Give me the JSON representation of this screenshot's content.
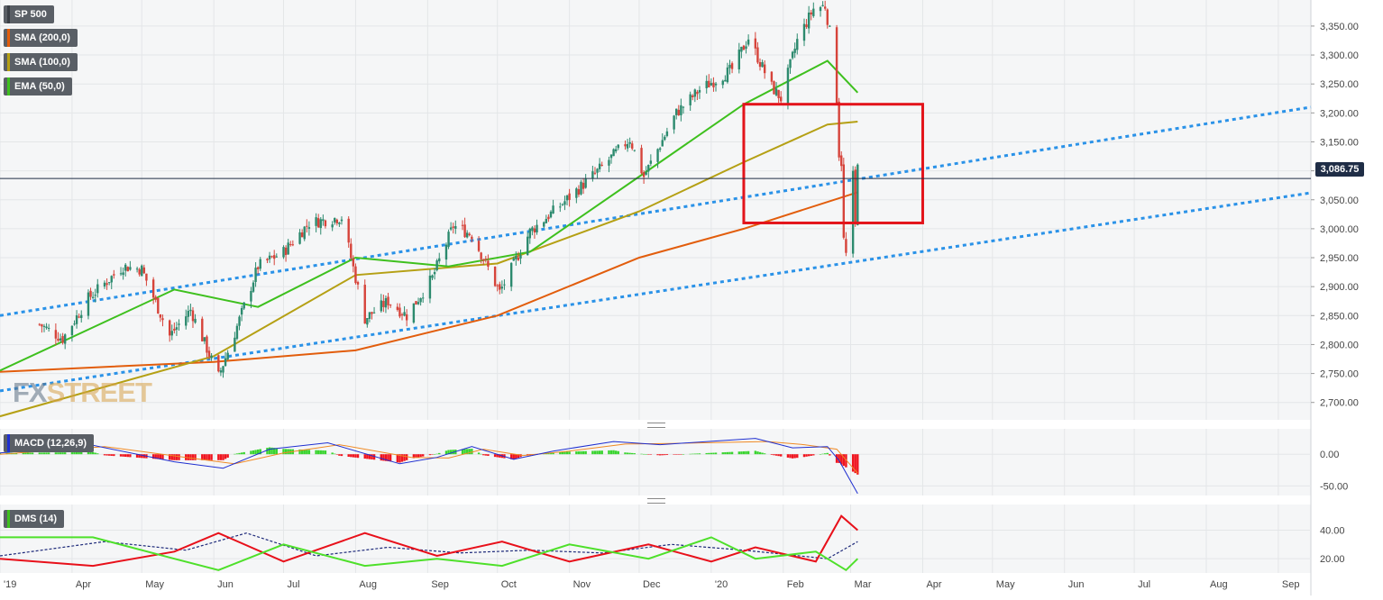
{
  "legends": {
    "price": {
      "label": "SP 500",
      "color": "#3a3f46"
    },
    "sma200": {
      "label": "SMA (200,0)",
      "color": "#e25d0c"
    },
    "sma100": {
      "label": "SMA (100,0)",
      "color": "#b5a014"
    },
    "ema50": {
      "label": "EMA (50,0)",
      "color": "#3ec01e"
    },
    "macd": {
      "label": "MACD (12,26,9)",
      "color": "#1f2fd0"
    },
    "dms": {
      "label": "DMS (14)",
      "color": "#3ec01e"
    }
  },
  "last_price": "3,086.75",
  "watermark": {
    "left": "FX",
    "right": "STREET"
  },
  "chart_data": [
    {
      "type": "candlestick",
      "series_name": "SP 500",
      "y_ticks": [
        "3,350.00",
        "3,300.00",
        "3,250.00",
        "3,200.00",
        "3,150.00",
        "3,100.00",
        "3,050.00",
        "3,000.00",
        "2,950.00",
        "2,900.00",
        "2,850.00",
        "2,800.00",
        "2,750.00",
        "2,700.00"
      ],
      "x_ticks": [
        "'19",
        "Apr",
        "May",
        "Jun",
        "Jul",
        "Aug",
        "Sep",
        "Oct",
        "Nov",
        "Dec",
        "'20",
        "Feb",
        "Mar",
        "Apr",
        "May",
        "Jun",
        "Jul",
        "Aug",
        "Sep"
      ],
      "ylim": [
        2670,
        3395
      ],
      "close_path": [
        [
          "2019-03-18",
          2835
        ],
        [
          "2019-03-28",
          2810
        ],
        [
          "2019-04-08",
          2880
        ],
        [
          "2019-04-23",
          2935
        ],
        [
          "2019-05-01",
          2930
        ],
        [
          "2019-05-13",
          2815
        ],
        [
          "2019-05-22",
          2860
        ],
        [
          "2019-06-03",
          2745
        ],
        [
          "2019-06-10",
          2820
        ],
        [
          "2019-06-20",
          2935
        ],
        [
          "2019-07-01",
          2960
        ],
        [
          "2019-07-12",
          3010
        ],
        [
          "2019-07-26",
          3020
        ],
        [
          "2019-08-05",
          2845
        ],
        [
          "2019-08-15",
          2875
        ],
        [
          "2019-08-23",
          2850
        ],
        [
          "2019-09-03",
          2915
        ],
        [
          "2019-09-12",
          3005
        ],
        [
          "2019-09-20",
          2990
        ],
        [
          "2019-10-02",
          2890
        ],
        [
          "2019-10-15",
          2995
        ],
        [
          "2019-10-28",
          3040
        ],
        [
          "2019-11-12",
          3095
        ],
        [
          "2019-11-27",
          3155
        ],
        [
          "2019-12-03",
          3090
        ],
        [
          "2019-12-17",
          3200
        ],
        [
          "2019-12-27",
          3240
        ],
        [
          "2020-01-10",
          3275
        ],
        [
          "2020-01-17",
          3330
        ],
        [
          "2020-01-27",
          3245
        ],
        [
          "2020-01-31",
          3225
        ],
        [
          "2020-02-07",
          3325
        ],
        [
          "2020-02-14",
          3380
        ],
        [
          "2020-02-19",
          3385
        ],
        [
          "2020-02-21",
          3340
        ],
        [
          "2020-02-24",
          3225
        ],
        [
          "2020-02-25",
          3130
        ],
        [
          "2020-02-26",
          3115
        ],
        [
          "2020-02-27",
          2980
        ],
        [
          "2020-02-28",
          2955
        ],
        [
          "2020-03-02",
          3090
        ],
        [
          "2020-03-03",
          3005
        ],
        [
          "2020-03-04",
          3120
        ]
      ],
      "sma200": [
        [
          "2019-03-01",
          2753
        ],
        [
          "2019-06-01",
          2770
        ],
        [
          "2019-08-01",
          2790
        ],
        [
          "2019-10-01",
          2850
        ],
        [
          "2019-12-01",
          2950
        ],
        [
          "2020-01-15",
          3000
        ],
        [
          "2020-03-04",
          3063
        ]
      ],
      "sma100": [
        [
          "2019-03-01",
          2676
        ],
        [
          "2019-06-01",
          2780
        ],
        [
          "2019-08-01",
          2920
        ],
        [
          "2019-10-01",
          2940
        ],
        [
          "2019-12-01",
          3030
        ],
        [
          "2020-01-15",
          3115
        ],
        [
          "2020-02-20",
          3180
        ],
        [
          "2020-03-04",
          3185
        ]
      ],
      "ema50": [
        [
          "2019-03-01",
          2755
        ],
        [
          "2019-05-15",
          2895
        ],
        [
          "2019-06-20",
          2865
        ],
        [
          "2019-08-01",
          2950
        ],
        [
          "2019-09-10",
          2935
        ],
        [
          "2019-10-15",
          2960
        ],
        [
          "2019-12-01",
          3090
        ],
        [
          "2020-01-15",
          3215
        ],
        [
          "2020-02-20",
          3290
        ],
        [
          "2020-03-04",
          3235
        ]
      ],
      "trendlines": [
        {
          "from": [
            "2019-03-01",
            2850
          ],
          "to": [
            "2020-09-15",
            3210
          ]
        },
        {
          "from": [
            "2019-03-01",
            2720
          ],
          "to": [
            "2020-09-15",
            3062
          ]
        }
      ],
      "highlight_box": {
        "x": [
          "2020-01-15",
          "2020-04-01"
        ],
        "y": [
          3010,
          3215
        ]
      }
    },
    {
      "type": "bar+line",
      "series_name": "MACD (12,26,9)",
      "y_ticks": [
        "0.00",
        "-50.00"
      ],
      "ylim": [
        -65,
        40
      ],
      "macd_line": [
        [
          "2019-03-01",
          2
        ],
        [
          "2019-04-10",
          14
        ],
        [
          "2019-05-15",
          -12
        ],
        [
          "2019-06-05",
          -22
        ],
        [
          "2019-06-25",
          8
        ],
        [
          "2019-07-20",
          18
        ],
        [
          "2019-08-20",
          -15
        ],
        [
          "2019-09-05",
          -5
        ],
        [
          "2019-09-20",
          12
        ],
        [
          "2019-10-08",
          -8
        ],
        [
          "2019-10-25",
          5
        ],
        [
          "2019-11-20",
          20
        ],
        [
          "2019-12-10",
          15
        ],
        [
          "2020-01-20",
          25
        ],
        [
          "2020-02-05",
          10
        ],
        [
          "2020-02-20",
          12
        ],
        [
          "2020-02-25",
          -10
        ],
        [
          "2020-03-04",
          -62
        ]
      ],
      "signal_line": [
        [
          "2019-03-01",
          0
        ],
        [
          "2019-04-15",
          12
        ],
        [
          "2019-05-20",
          -5
        ],
        [
          "2019-06-10",
          -15
        ],
        [
          "2019-07-01",
          2
        ],
        [
          "2019-07-25",
          15
        ],
        [
          "2019-08-25",
          -5
        ],
        [
          "2019-09-10",
          -6
        ],
        [
          "2019-09-25",
          8
        ],
        [
          "2019-10-12",
          -2
        ],
        [
          "2019-11-01",
          5
        ],
        [
          "2019-11-25",
          16
        ],
        [
          "2019-12-15",
          17
        ],
        [
          "2020-01-25",
          20
        ],
        [
          "2020-02-10",
          15
        ],
        [
          "2020-02-24",
          8
        ],
        [
          "2020-03-04",
          -30
        ]
      ]
    },
    {
      "type": "line",
      "series_name": "DMS (14)",
      "y_ticks": [
        "40.00",
        "20.00"
      ],
      "ylim": [
        10,
        58
      ],
      "plus_di": [
        [
          "2019-03-01",
          35
        ],
        [
          "2019-04-10",
          35
        ],
        [
          "2019-05-15",
          20
        ],
        [
          "2019-06-03",
          12
        ],
        [
          "2019-07-01",
          30
        ],
        [
          "2019-08-05",
          15
        ],
        [
          "2019-09-05",
          20
        ],
        [
          "2019-10-03",
          15
        ],
        [
          "2019-11-01",
          30
        ],
        [
          "2019-12-05",
          20
        ],
        [
          "2020-01-01",
          35
        ],
        [
          "2020-01-20",
          20
        ],
        [
          "2020-02-15",
          25
        ],
        [
          "2020-02-28",
          12
        ],
        [
          "2020-03-04",
          20
        ]
      ],
      "minus_di": [
        [
          "2019-03-01",
          20
        ],
        [
          "2019-04-10",
          15
        ],
        [
          "2019-05-15",
          25
        ],
        [
          "2019-06-03",
          38
        ],
        [
          "2019-07-01",
          18
        ],
        [
          "2019-08-05",
          38
        ],
        [
          "2019-09-05",
          22
        ],
        [
          "2019-10-03",
          32
        ],
        [
          "2019-11-01",
          18
        ],
        [
          "2019-12-05",
          30
        ],
        [
          "2020-01-01",
          18
        ],
        [
          "2020-01-20",
          28
        ],
        [
          "2020-02-15",
          18
        ],
        [
          "2020-02-26",
          50
        ],
        [
          "2020-03-04",
          40
        ]
      ],
      "adx": [
        [
          "2019-03-01",
          22
        ],
        [
          "2019-04-15",
          32
        ],
        [
          "2019-05-20",
          26
        ],
        [
          "2019-06-15",
          38
        ],
        [
          "2019-07-15",
          22
        ],
        [
          "2019-08-15",
          28
        ],
        [
          "2019-09-15",
          24
        ],
        [
          "2019-10-15",
          26
        ],
        [
          "2019-11-15",
          24
        ],
        [
          "2019-12-15",
          30
        ],
        [
          "2020-01-15",
          26
        ],
        [
          "2020-02-20",
          20
        ],
        [
          "2020-03-04",
          32
        ]
      ]
    }
  ]
}
